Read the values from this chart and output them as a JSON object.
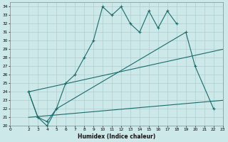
{
  "xlabel": "Humidex (Indice chaleur)",
  "background_color": "#cce8e8",
  "grid_color": "#aacfcf",
  "line_color": "#1a6b6b",
  "xlim": [
    0,
    23
  ],
  "ylim": [
    20,
    34.5
  ],
  "xticks": [
    0,
    2,
    3,
    4,
    5,
    6,
    7,
    8,
    9,
    10,
    11,
    12,
    13,
    14,
    15,
    16,
    17,
    18,
    19,
    20,
    21,
    22,
    23
  ],
  "yticks": [
    20,
    21,
    22,
    23,
    24,
    25,
    26,
    27,
    28,
    29,
    30,
    31,
    32,
    33,
    34
  ],
  "line1_x": [
    2,
    3,
    4,
    5,
    6,
    7,
    8,
    9,
    10,
    11,
    12,
    13,
    14,
    15,
    16,
    17,
    18
  ],
  "line1_y": [
    24,
    21,
    20,
    22,
    25,
    26,
    28,
    30,
    34,
    33,
    34,
    32,
    31,
    33.5,
    31.5,
    33.5,
    32
  ],
  "line2_x": [
    2,
    3,
    4,
    5,
    19,
    20,
    22
  ],
  "line2_y": [
    24,
    21,
    20.5,
    22,
    31,
    27,
    22
  ],
  "line3_x": [
    2,
    23
  ],
  "line3_y": [
    21,
    23
  ],
  "line4_x": [
    2,
    23
  ],
  "line4_y": [
    24,
    29
  ]
}
